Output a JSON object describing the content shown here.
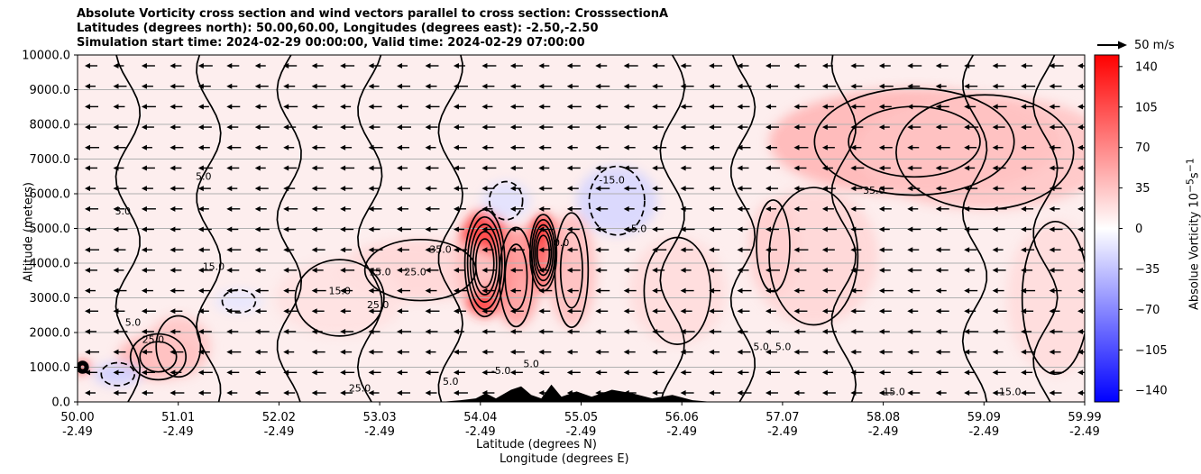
{
  "chart_data": {
    "type": "heatmap",
    "title_lines": [
      "Absolute Vorticity cross section and wind vectors parallel to cross section: CrosssectionA",
      "Latitudes (degrees north): 50.00,60.00, Longitudes (degrees east): -2.50,-2.50",
      "Simulation start time: 2024-02-29 00:00:00, Valid time: 2024-02-29 07:00:00"
    ],
    "ylabel": "Altitude (meters)",
    "xlabel_line1": "Latitude (degrees N)",
    "xlabel_line2": "Longitude (degrees E)",
    "ylim": [
      0,
      10000
    ],
    "yticks": [
      "0.0",
      "1000.0",
      "2000.0",
      "3000.0",
      "4000.0",
      "5000.0",
      "6000.0",
      "7000.0",
      "8000.0",
      "9000.0",
      "10000.0"
    ],
    "xlim": [
      50.0,
      59.99
    ],
    "xticks_lat": [
      "50.00",
      "51.01",
      "52.02",
      "53.03",
      "54.04",
      "55.05",
      "56.06",
      "57.07",
      "58.08",
      "59.09",
      "59.99"
    ],
    "xticks_lon": [
      "-2.49",
      "-2.49",
      "-2.49",
      "-2.49",
      "-2.49",
      "-2.49",
      "-2.49",
      "-2.49",
      "-2.49",
      "-2.49",
      "-2.49"
    ],
    "grid_y": true,
    "colorbar": {
      "label": "Absolue Vorticity 10",
      "label_exp": "−5",
      "label_unit": "s",
      "label_unit_exp": "−1",
      "range": [
        -150,
        150
      ],
      "ticks": [
        "140",
        "105",
        "70",
        "35",
        "0",
        "−35",
        "−70",
        "−105",
        "−140"
      ],
      "colormap": "bwr",
      "color_low": "#0000ff",
      "color_mid": "#ffffff",
      "color_high": "#ff0000"
    },
    "vector_reference": "50 m/s",
    "wind_direction": "leftward (toward lower latitude)",
    "contour_labels": [
      {
        "lat": 50.45,
        "alt": 5.4,
        "text": "5.0"
      },
      {
        "lat": 51.25,
        "alt": 6.4,
        "text": "5.0"
      },
      {
        "lat": 51.35,
        "alt": 3.8,
        "text": "15.0"
      },
      {
        "lat": 53.0,
        "alt": 3.65,
        "text": "15.0"
      },
      {
        "lat": 53.35,
        "alt": 3.65,
        "text": "25.0"
      },
      {
        "lat": 53.6,
        "alt": 4.3,
        "text": "35.0"
      },
      {
        "lat": 52.6,
        "alt": 3.1,
        "text": "15.0"
      },
      {
        "lat": 52.98,
        "alt": 2.7,
        "text": "25.0"
      },
      {
        "lat": 55.3,
        "alt": 6.3,
        "text": "-15.0"
      },
      {
        "lat": 55.55,
        "alt": 4.9,
        "text": "-5.0"
      },
      {
        "lat": 54.8,
        "alt": 4.5,
        "text": "0.0"
      },
      {
        "lat": 57.9,
        "alt": 6.0,
        "text": "35.0"
      },
      {
        "lat": 56.78,
        "alt": 1.5,
        "text": "5.0"
      },
      {
        "lat": 57.0,
        "alt": 1.5,
        "text": "5.0"
      },
      {
        "lat": 54.2,
        "alt": 0.8,
        "text": "-5.0"
      },
      {
        "lat": 54.5,
        "alt": 1.0,
        "text": "5.0"
      },
      {
        "lat": 53.7,
        "alt": 0.5,
        "text": "5.0"
      },
      {
        "lat": 52.8,
        "alt": 0.3,
        "text": "25.0"
      },
      {
        "lat": 58.1,
        "alt": 0.2,
        "text": "15.0"
      },
      {
        "lat": 59.25,
        "alt": 0.2,
        "text": "15.0"
      },
      {
        "lat": 50.55,
        "alt": 2.2,
        "text": "5.0"
      },
      {
        "lat": 50.75,
        "alt": 1.7,
        "text": "25.0"
      }
    ],
    "vorticity_features": [
      {
        "lat": 54.04,
        "alt": 4.0,
        "value": 120,
        "sx": 0.18,
        "sy": 1.4
      },
      {
        "lat": 54.62,
        "alt": 4.3,
        "value": 130,
        "sx": 0.12,
        "sy": 1.0
      },
      {
        "lat": 54.35,
        "alt": 3.6,
        "value": 60,
        "sx": 0.15,
        "sy": 1.3
      },
      {
        "lat": 54.9,
        "alt": 3.8,
        "value": 40,
        "sx": 0.15,
        "sy": 1.5
      },
      {
        "lat": 55.35,
        "alt": 5.8,
        "value": -25,
        "sx": 0.25,
        "sy": 0.9
      },
      {
        "lat": 54.25,
        "alt": 5.8,
        "value": -18,
        "sx": 0.15,
        "sy": 0.5
      },
      {
        "lat": 58.3,
        "alt": 7.5,
        "value": 45,
        "sx": 0.9,
        "sy": 1.4
      },
      {
        "lat": 59.0,
        "alt": 7.2,
        "value": 35,
        "sx": 0.8,
        "sy": 1.5
      },
      {
        "lat": 57.3,
        "alt": 4.2,
        "value": 25,
        "sx": 0.4,
        "sy": 1.8
      },
      {
        "lat": 56.9,
        "alt": 4.5,
        "value": 28,
        "sx": 0.15,
        "sy": 1.2
      },
      {
        "lat": 50.8,
        "alt": 1.3,
        "value": 45,
        "sx": 0.25,
        "sy": 0.6
      },
      {
        "lat": 51.0,
        "alt": 1.6,
        "value": 35,
        "sx": 0.2,
        "sy": 0.8
      },
      {
        "lat": 53.4,
        "alt": 3.8,
        "value": 25,
        "sx": 0.5,
        "sy": 0.8
      },
      {
        "lat": 52.6,
        "alt": 3.0,
        "value": 18,
        "sx": 0.4,
        "sy": 1.0
      },
      {
        "lat": 55.95,
        "alt": 3.2,
        "value": 22,
        "sx": 0.3,
        "sy": 1.4
      },
      {
        "lat": 59.7,
        "alt": 3.0,
        "value": 22,
        "sx": 0.3,
        "sy": 2.0
      },
      {
        "lat": 50.05,
        "alt": 1.0,
        "value": 120,
        "sx": 0.05,
        "sy": 0.15
      },
      {
        "lat": 50.4,
        "alt": 0.8,
        "value": -30,
        "sx": 0.15,
        "sy": 0.3
      },
      {
        "lat": 51.6,
        "alt": 2.9,
        "value": -15,
        "sx": 0.15,
        "sy": 0.3
      }
    ],
    "terrain_km": [
      [
        53.6,
        0.0
      ],
      [
        53.8,
        0.05
      ],
      [
        53.95,
        0.1
      ],
      [
        54.05,
        0.25
      ],
      [
        54.15,
        0.1
      ],
      [
        54.3,
        0.35
      ],
      [
        54.4,
        0.45
      ],
      [
        54.5,
        0.2
      ],
      [
        54.6,
        0.1
      ],
      [
        54.7,
        0.5
      ],
      [
        54.8,
        0.15
      ],
      [
        54.95,
        0.3
      ],
      [
        55.1,
        0.15
      ],
      [
        55.3,
        0.35
      ],
      [
        55.5,
        0.25
      ],
      [
        55.7,
        0.1
      ],
      [
        55.9,
        0.2
      ],
      [
        56.1,
        0.05
      ],
      [
        56.3,
        0.0
      ]
    ]
  }
}
